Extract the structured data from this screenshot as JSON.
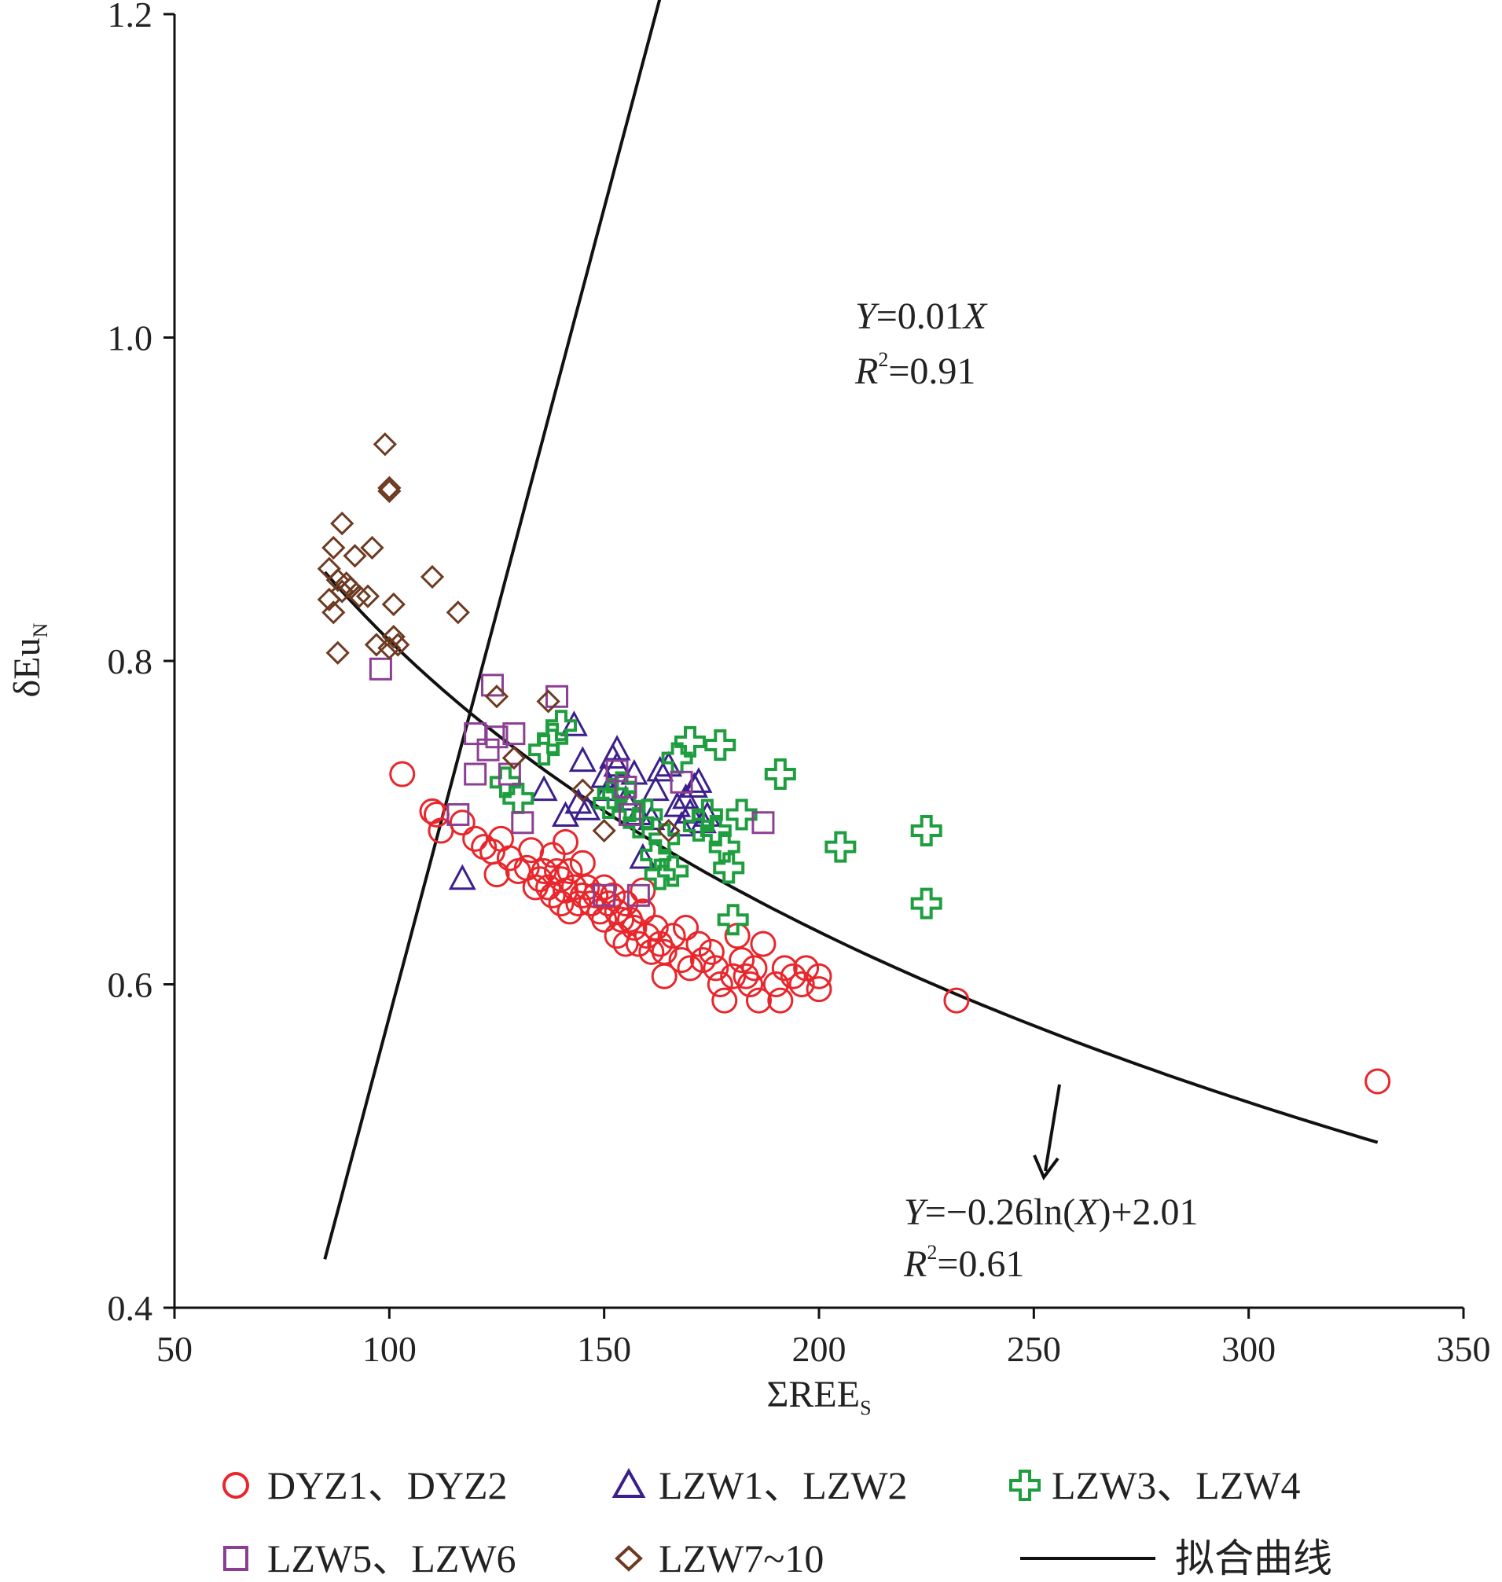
{
  "chart_data": {
    "type": "scatter",
    "xlabel": "ΣREE",
    "xlabel_sub": "S",
    "ylabel": "δEu",
    "ylabel_sub": "N",
    "xlim": [
      50,
      350
    ],
    "ylim": [
      0.4,
      1.2
    ],
    "x_ticks": [
      "50",
      "100",
      "150",
      "200",
      "250",
      "300",
      "350"
    ],
    "y_ticks": [
      "0.4",
      "0.6",
      "0.8",
      "1.0",
      "1.2"
    ],
    "grid": false,
    "legend_position": "bottom",
    "series": [
      {
        "name": "DYZ1、DYZ2",
        "marker": "circle",
        "color": "#e8262b",
        "points": [
          [
            103,
            0.73
          ],
          [
            111,
            0.705
          ],
          [
            110,
            0.707
          ],
          [
            112,
            0.695
          ],
          [
            117,
            0.7
          ],
          [
            120,
            0.69
          ],
          [
            122,
            0.685
          ],
          [
            124,
            0.682
          ],
          [
            126,
            0.69
          ],
          [
            125,
            0.668
          ],
          [
            128,
            0.678
          ],
          [
            130,
            0.67
          ],
          [
            132,
            0.672
          ],
          [
            133,
            0.683
          ],
          [
            134,
            0.66
          ],
          [
            135,
            0.665
          ],
          [
            136,
            0.67
          ],
          [
            137,
            0.66
          ],
          [
            138,
            0.655
          ],
          [
            138,
            0.68
          ],
          [
            139,
            0.67
          ],
          [
            140,
            0.665
          ],
          [
            140,
            0.65
          ],
          [
            141,
            0.658
          ],
          [
            142,
            0.67
          ],
          [
            142,
            0.645
          ],
          [
            143,
            0.66
          ],
          [
            144,
            0.65
          ],
          [
            145,
            0.655
          ],
          [
            145,
            0.675
          ],
          [
            146,
            0.66
          ],
          [
            147,
            0.65
          ],
          [
            148,
            0.655
          ],
          [
            149,
            0.645
          ],
          [
            150,
            0.66
          ],
          [
            150,
            0.64
          ],
          [
            151,
            0.65
          ],
          [
            152,
            0.655
          ],
          [
            153,
            0.645
          ],
          [
            153,
            0.63
          ],
          [
            154,
            0.64
          ],
          [
            155,
            0.65
          ],
          [
            155,
            0.625
          ],
          [
            156,
            0.64
          ],
          [
            157,
            0.635
          ],
          [
            158,
            0.625
          ],
          [
            159,
            0.645
          ],
          [
            160,
            0.63
          ],
          [
            161,
            0.62
          ],
          [
            162,
            0.635
          ],
          [
            163,
            0.625
          ],
          [
            164,
            0.62
          ],
          [
            164,
            0.605
          ],
          [
            166,
            0.63
          ],
          [
            168,
            0.615
          ],
          [
            169,
            0.635
          ],
          [
            170,
            0.61
          ],
          [
            172,
            0.625
          ],
          [
            173,
            0.615
          ],
          [
            175,
            0.62
          ],
          [
            176,
            0.61
          ],
          [
            177,
            0.6
          ],
          [
            178,
            0.59
          ],
          [
            180,
            0.605
          ],
          [
            181,
            0.63
          ],
          [
            182,
            0.615
          ],
          [
            183,
            0.605
          ],
          [
            184,
            0.6
          ],
          [
            185,
            0.61
          ],
          [
            186,
            0.59
          ],
          [
            187,
            0.625
          ],
          [
            190,
            0.6
          ],
          [
            191,
            0.59
          ],
          [
            192,
            0.61
          ],
          [
            194,
            0.605
          ],
          [
            196,
            0.6
          ],
          [
            197,
            0.61
          ],
          [
            200,
            0.605
          ],
          [
            200,
            0.597
          ],
          [
            159,
            0.658
          ],
          [
            141,
            0.688
          ],
          [
            232,
            0.59
          ],
          [
            330,
            0.54
          ]
        ]
      },
      {
        "name": "LZW1、LZW2",
        "marker": "triangle",
        "color": "#3b1f8c",
        "points": [
          [
            117,
            0.665
          ],
          [
            136,
            0.72
          ],
          [
            141,
            0.704
          ],
          [
            143,
            0.76
          ],
          [
            144,
            0.712
          ],
          [
            145,
            0.738
          ],
          [
            146,
            0.708
          ],
          [
            150,
            0.728
          ],
          [
            151,
            0.72
          ],
          [
            152,
            0.74
          ],
          [
            153,
            0.735
          ],
          [
            153,
            0.745
          ],
          [
            155,
            0.714
          ],
          [
            157,
            0.73
          ],
          [
            158,
            0.705
          ],
          [
            159,
            0.678
          ],
          [
            161,
            0.702
          ],
          [
            162,
            0.72
          ],
          [
            163,
            0.732
          ],
          [
            165,
            0.735
          ],
          [
            167,
            0.71
          ],
          [
            168,
            0.698
          ],
          [
            169,
            0.715
          ],
          [
            170,
            0.706
          ],
          [
            171,
            0.722
          ],
          [
            172,
            0.725
          ],
          [
            173,
            0.7
          ],
          [
            174,
            0.704
          ]
        ]
      },
      {
        "name": "LZW3、LZW4",
        "marker": "plus",
        "color": "#1e9e3e",
        "points": [
          [
            127,
            0.725
          ],
          [
            130,
            0.715
          ],
          [
            136,
            0.745
          ],
          [
            138,
            0.752
          ],
          [
            140,
            0.76
          ],
          [
            151,
            0.712
          ],
          [
            152,
            0.718
          ],
          [
            154,
            0.722
          ],
          [
            156,
            0.71
          ],
          [
            158,
            0.7
          ],
          [
            160,
            0.705
          ],
          [
            162,
            0.68
          ],
          [
            163,
            0.668
          ],
          [
            164,
            0.69
          ],
          [
            166,
            0.67
          ],
          [
            167,
            0.74
          ],
          [
            170,
            0.75
          ],
          [
            172,
            0.698
          ],
          [
            174,
            0.705
          ],
          [
            176,
            0.695
          ],
          [
            177,
            0.748
          ],
          [
            178,
            0.685
          ],
          [
            179,
            0.672
          ],
          [
            180,
            0.64
          ],
          [
            182,
            0.705
          ],
          [
            191,
            0.73
          ],
          [
            205,
            0.685
          ],
          [
            225,
            0.695
          ],
          [
            225,
            0.65
          ]
        ]
      },
      {
        "name": "LZW5、LZW6",
        "marker": "square",
        "color": "#8b3f92",
        "points": [
          [
            98,
            0.795
          ],
          [
            116,
            0.705
          ],
          [
            120,
            0.755
          ],
          [
            120,
            0.73
          ],
          [
            123,
            0.745
          ],
          [
            124,
            0.785
          ],
          [
            125,
            0.753
          ],
          [
            128,
            0.73
          ],
          [
            129,
            0.755
          ],
          [
            131,
            0.7
          ],
          [
            139,
            0.778
          ],
          [
            150,
            0.655
          ],
          [
            153,
            0.732
          ],
          [
            155,
            0.722
          ],
          [
            156,
            0.705
          ],
          [
            158,
            0.655
          ],
          [
            168,
            0.725
          ],
          [
            187,
            0.7
          ]
        ]
      },
      {
        "name": "LZW7~10",
        "marker": "diamond",
        "color": "#6d3b22",
        "points": [
          [
            86,
            0.857
          ],
          [
            87,
            0.87
          ],
          [
            86,
            0.838
          ],
          [
            87,
            0.83
          ],
          [
            88,
            0.85
          ],
          [
            88,
            0.805
          ],
          [
            89,
            0.843
          ],
          [
            89,
            0.885
          ],
          [
            90,
            0.848
          ],
          [
            91,
            0.845
          ],
          [
            92,
            0.865
          ],
          [
            93,
            0.84
          ],
          [
            95,
            0.84
          ],
          [
            96,
            0.87
          ],
          [
            97,
            0.81
          ],
          [
            99,
            0.934
          ],
          [
            100,
            0.905
          ],
          [
            100,
            0.907
          ],
          [
            100,
            0.808
          ],
          [
            101,
            0.835
          ],
          [
            101,
            0.815
          ],
          [
            102,
            0.81
          ],
          [
            110,
            0.852
          ],
          [
            116,
            0.83
          ],
          [
            125,
            0.778
          ],
          [
            129,
            0.74
          ],
          [
            137,
            0.775
          ],
          [
            145,
            0.72
          ],
          [
            150,
            0.695
          ],
          [
            165,
            0.695
          ]
        ]
      },
      {
        "name": "拟合曲线",
        "marker": "line",
        "color": "#111111",
        "lines": [
          {
            "type": "linear",
            "x_range": [
              85,
              225
            ]
          },
          {
            "type": "log",
            "x_range": [
              85,
              330
            ]
          }
        ]
      }
    ],
    "annotations": [
      {
        "id": "eq1",
        "y_part": "Y",
        "eq_part": "=0.01",
        "x_part": "X",
        "r_part": "R",
        "r_sup": "2",
        "r_val": "=0.91"
      },
      {
        "id": "eq2",
        "y_part": "Y",
        "eq_part": "=−0.26ln(",
        "x_part": "X",
        "tail": ")+2.01",
        "r_part": "R",
        "r_sup": "2",
        "r_val": "=0.61"
      }
    ]
  }
}
